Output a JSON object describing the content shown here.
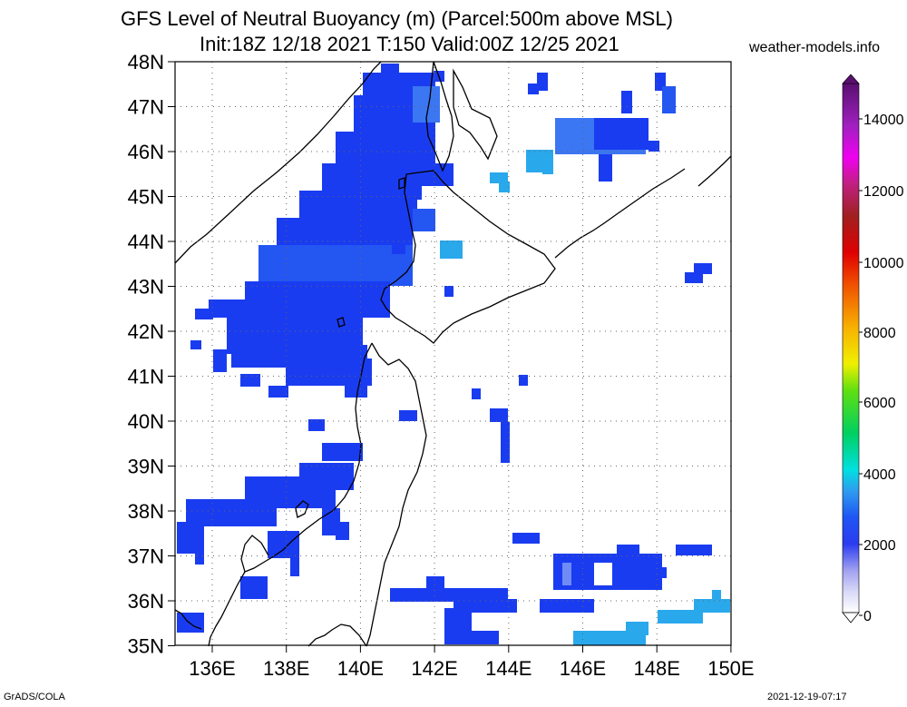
{
  "header": {
    "title": "GFS Level of Neutral Buoyancy (m) (Parcel:500m above MSL)",
    "subtitle": "Init:18Z 12/18 2021 T:150 Valid:00Z 12/25 2021",
    "credit": "weather-models.info"
  },
  "footer": {
    "left": "GrADS/COLA",
    "right": "2021-12-19-07:17"
  },
  "axes": {
    "lat_labels": [
      "48N",
      "47N",
      "46N",
      "45N",
      "44N",
      "43N",
      "42N",
      "41N",
      "40N",
      "39N",
      "38N",
      "37N",
      "36N",
      "35N"
    ],
    "lon_labels": [
      "136E",
      "138E",
      "140E",
      "142E",
      "144E",
      "146E",
      "148E",
      "150E"
    ]
  },
  "colorbar": {
    "labels": [
      "14000",
      "12000",
      "10000",
      "8000",
      "6000",
      "4000",
      "2000",
      "0"
    ]
  }
}
